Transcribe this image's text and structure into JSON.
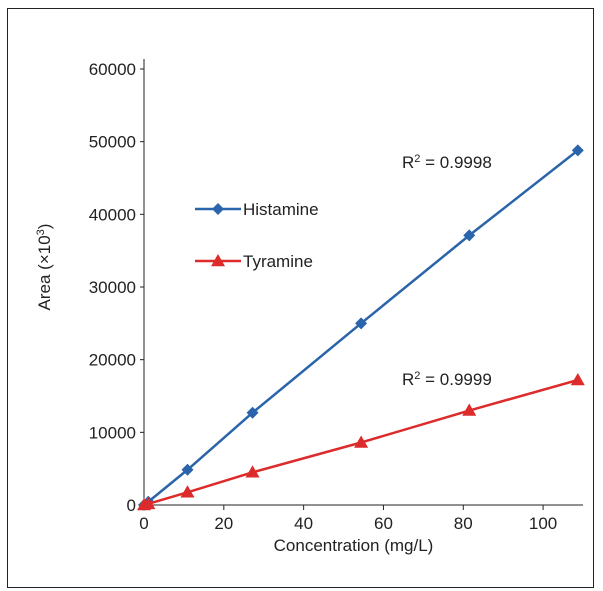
{
  "chart_data": {
    "type": "line",
    "xlabel": "Concentration (mg/L)",
    "ylabel_main": "Area (×10",
    "ylabel_sup": "3",
    "ylabel_tail": ")",
    "xlim": [
      0,
      110
    ],
    "ylim": [
      0,
      60000
    ],
    "xticks": [
      0,
      20,
      40,
      60,
      80,
      100
    ],
    "yticks": [
      0,
      10000,
      20000,
      30000,
      40000,
      50000,
      60000
    ],
    "grid": false,
    "legend_position": "upper-left",
    "series": [
      {
        "name": "Histamine",
        "color": "#2a64aa",
        "marker": "diamond",
        "x": [
          0,
          1.1,
          10.9,
          27.2,
          54.4,
          81.5,
          108.7
        ],
        "y": [
          0,
          450,
          4850,
          12700,
          25000,
          37100,
          48800
        ]
      },
      {
        "name": "Tyramine",
        "color": "#dd2a2a",
        "marker": "triangle",
        "x": [
          0,
          1.1,
          10.9,
          27.2,
          54.4,
          81.5,
          108.7
        ],
        "y": [
          0,
          160,
          1750,
          4500,
          8600,
          13000,
          17200
        ]
      }
    ],
    "annotations": [
      {
        "label_main": "R",
        "label_sup": "2",
        "label_tail": " = 0.9998",
        "series": "Histamine"
      },
      {
        "label_main": "R",
        "label_sup": "2",
        "label_tail": " = 0.9999",
        "series": "Tyramine"
      }
    ]
  }
}
